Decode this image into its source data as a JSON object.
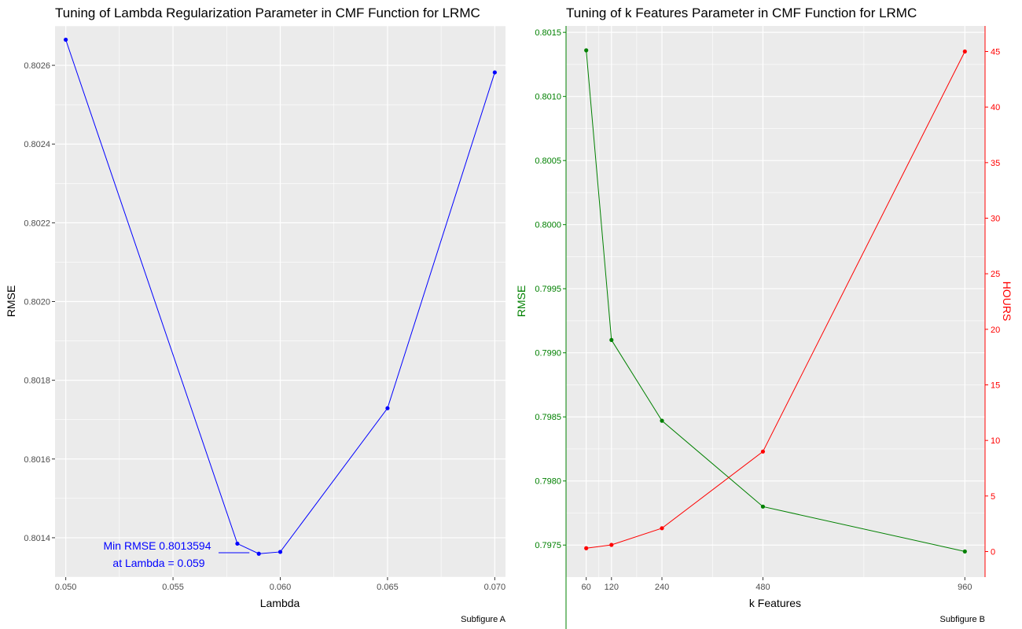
{
  "colors": {
    "panel_bg": "#ebebeb",
    "grid": "#ffffff",
    "text": "#000000",
    "tick_text": "#4d4d4d",
    "blue": "#0000ff",
    "green": "#008000",
    "red": "#ff0000"
  },
  "chart_data": [
    {
      "type": "line",
      "title": "Tuning of Lambda Regularization Parameter in CMF Function for LRMC",
      "xlabel": "Lambda",
      "ylabel": "RMSE",
      "caption": "Subfigure A",
      "xlim": [
        0.0495,
        0.0705
      ],
      "ylim": [
        0.8013,
        0.8027
      ],
      "x_ticks": [
        0.05,
        0.055,
        0.06,
        0.065,
        0.07
      ],
      "x_tick_labels": [
        "0.050",
        "0.055",
        "0.060",
        "0.065",
        "0.070"
      ],
      "y_ticks": [
        0.8014,
        0.8016,
        0.8018,
        0.802,
        0.8022,
        0.8024,
        0.8026
      ],
      "y_tick_labels": [
        "0.8014",
        "0.8016",
        "0.8018",
        "0.8020",
        "0.8022",
        "0.8024",
        "0.8026"
      ],
      "grid": true,
      "series": [
        {
          "color": "#0000ff",
          "x": [
            0.05,
            0.058,
            0.059,
            0.06,
            0.065,
            0.07
          ],
          "y": [
            0.802665,
            0.801385,
            0.8013594,
            0.801364,
            0.801729,
            0.802582
          ]
        }
      ],
      "annotation": {
        "lines": [
          "Min RMSE 0.8013594",
          "at Lambda = 0.059"
        ],
        "color": "#0000ff",
        "points_to": [
          0.059,
          0.8013594
        ]
      }
    },
    {
      "type": "line",
      "title": "Tuning of k Features Parameter in CMF Function for LRMC",
      "xlabel": "k Features",
      "ylabel": "RMSE",
      "y2label": "HOURS",
      "caption": "Subfigure B",
      "xlim": [
        12,
        1008
      ],
      "ylim": [
        0.79725,
        0.80155
      ],
      "y2lim": [
        -2.3,
        47.3
      ],
      "x_ticks": [
        60,
        120,
        240,
        480,
        960
      ],
      "x_tick_labels": [
        "60",
        "120",
        "240",
        "480",
        "960"
      ],
      "y_ticks": [
        0.7975,
        0.798,
        0.7985,
        0.799,
        0.7995,
        0.8,
        0.8005,
        0.801,
        0.8015
      ],
      "y_tick_labels": [
        "0.7975",
        "0.7980",
        "0.7985",
        "0.7990",
        "0.7995",
        "0.8000",
        "0.8005",
        "0.8010",
        "0.8015"
      ],
      "y2_ticks": [
        0,
        5,
        10,
        15,
        20,
        25,
        30,
        35,
        40,
        45
      ],
      "y2_tick_labels": [
        "0",
        "5",
        "10",
        "15",
        "20",
        "25",
        "30",
        "35",
        "40",
        "45"
      ],
      "grid": true,
      "series": [
        {
          "axis": "left",
          "color": "#008000",
          "x": [
            60,
            120,
            240,
            480,
            960
          ],
          "y": [
            0.80136,
            0.7991,
            0.79847,
            0.7978,
            0.79745
          ]
        },
        {
          "axis": "right",
          "color": "#ff0000",
          "x": [
            60,
            120,
            240,
            480,
            960
          ],
          "y": [
            0.3,
            0.6,
            2.1,
            9.0,
            45.0
          ]
        }
      ]
    }
  ]
}
